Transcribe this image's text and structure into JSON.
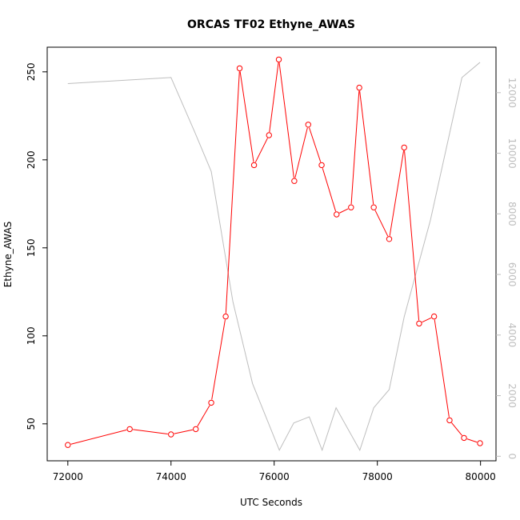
{
  "chart_data": {
    "type": "line",
    "title": "ORCAS TF02 Ethyne_AWAS",
    "xlabel": "UTC Seconds",
    "ylabel": "Ethyne_AWAS",
    "xlim": [
      71600,
      80300
    ],
    "ylim": [
      29,
      264
    ],
    "y2lim": [
      -150,
      13500
    ],
    "x_ticks": [
      72000,
      74000,
      76000,
      78000,
      80000
    ],
    "y_ticks": [
      50,
      100,
      150,
      200,
      250
    ],
    "y2_ticks": [
      0,
      2000,
      4000,
      6000,
      8000,
      10000,
      12000
    ],
    "grid": false,
    "colors": {
      "primary": "#ff0000",
      "secondary": "#bebebe",
      "axes": "#000000"
    },
    "series": [
      {
        "axis": "left",
        "style": "line-with-open-circles",
        "x": [
          72000,
          73200,
          74000,
          74480,
          74780,
          75060,
          75330,
          75610,
          75900,
          76090,
          76390,
          76660,
          76920,
          77210,
          77490,
          77650,
          77930,
          78230,
          78520,
          78810,
          79100,
          79400,
          79680,
          79990
        ],
        "y": [
          38,
          47,
          44,
          47,
          62,
          111,
          252,
          197,
          214,
          257,
          188,
          220,
          197,
          169,
          173,
          241,
          173,
          155,
          207,
          107,
          111,
          52,
          42,
          39
        ]
      },
      {
        "axis": "right",
        "style": "line",
        "x": [
          72000,
          74000,
          74460,
          74780,
          75200,
          75580,
          76100,
          76380,
          76680,
          76930,
          77200,
          77660,
          77930,
          78230,
          78520,
          79030,
          79640,
          79990
        ],
        "y": [
          12300,
          12500,
          10700,
          9400,
          5100,
          2400,
          200,
          1100,
          1300,
          200,
          1600,
          200,
          1600,
          2200,
          4600,
          7800,
          12500,
          13000
        ]
      }
    ]
  }
}
